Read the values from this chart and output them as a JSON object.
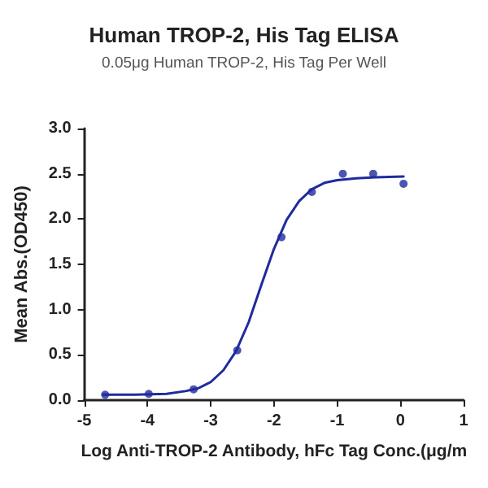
{
  "chart_data": {
    "type": "scatter",
    "title": "Human TROP-2, His Tag ELISA",
    "subtitle": "0.05μg Human TROP-2, His Tag Per Well",
    "xlabel": "Log Anti-TROP-2 Antibody, hFc Tag Conc.(μg/m",
    "ylabel": "Mean Abs.(OD450)",
    "x": [
      -4.67,
      -3.98,
      -3.27,
      -2.58,
      -1.88,
      -1.4,
      -0.91,
      -0.43,
      0.05
    ],
    "series": [
      {
        "color": "#1f2a9c",
        "values": [
          0.06,
          0.07,
          0.12,
          0.55,
          1.8,
          2.3,
          2.5,
          2.5,
          2.39
        ]
      },
      {
        "type": "line",
        "marker": "none",
        "color": "#1f2a9c",
        "x": [
          -4.7,
          -4.2,
          -3.7,
          -3.4,
          -3.2,
          -3.0,
          -2.8,
          -2.6,
          -2.4,
          -2.2,
          -2.0,
          -1.8,
          -1.6,
          -1.4,
          -1.2,
          -1.0,
          -0.7,
          -0.4,
          0.05
        ],
        "values": [
          0.06,
          0.06,
          0.07,
          0.1,
          0.13,
          0.2,
          0.33,
          0.54,
          0.86,
          1.27,
          1.67,
          1.99,
          2.2,
          2.33,
          2.4,
          2.43,
          2.45,
          2.46,
          2.47
        ]
      }
    ],
    "marker": "circle",
    "line_style": "solid",
    "grid": false,
    "xlim": [
      -5,
      1
    ],
    "xticks": [
      -5,
      -4,
      -3,
      -2,
      -1,
      0,
      1
    ],
    "ylim": [
      0,
      3
    ],
    "yticks": [
      {
        "value": 0,
        "label": "0.0"
      },
      0.5,
      {
        "value": 1,
        "label": "1.0"
      },
      1.5,
      {
        "value": 2,
        "label": "2.0"
      },
      2.5,
      {
        "value": 3,
        "label": "3.0"
      }
    ]
  }
}
